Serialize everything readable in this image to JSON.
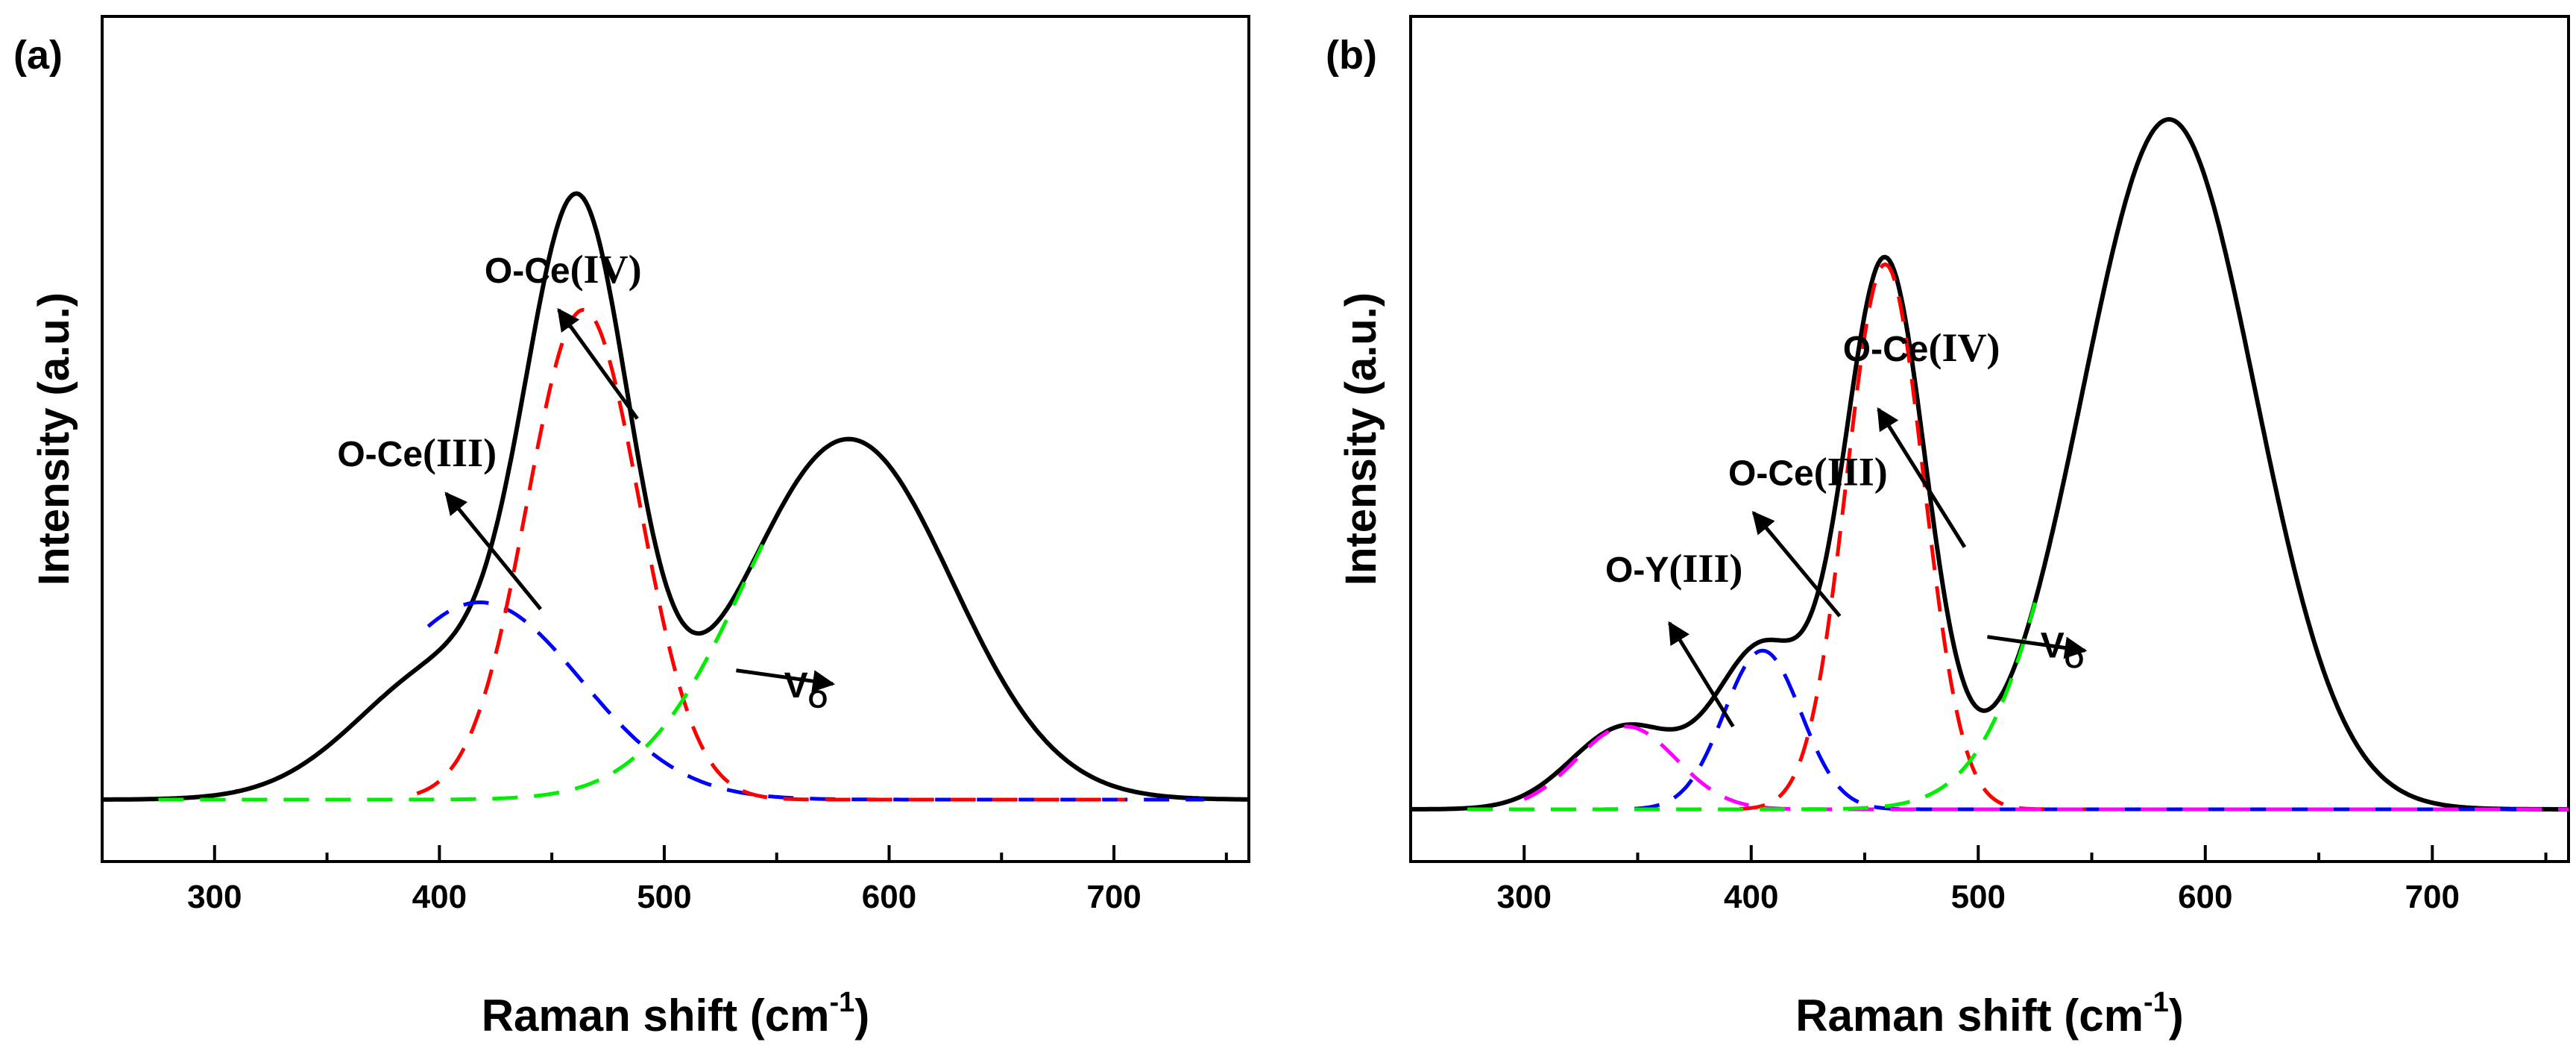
{
  "chart_data": [
    {
      "type": "line",
      "panel_label": "(a)",
      "xlabel": "Raman shift",
      "xlabel_unit_base": "cm",
      "xlabel_unit_exp": "-1",
      "ylabel": "Intensity (a.u.)",
      "xlim": [
        250,
        760
      ],
      "ylim": [
        0,
        1.12
      ],
      "x_ticks": [
        300,
        400,
        500,
        600,
        700
      ],
      "x_tick_labels": [
        "300",
        "400",
        "500",
        "600",
        "700"
      ],
      "y_tick_labels": [],
      "series": [
        {
          "style": "solid",
          "color": "#000000",
          "peaks": [
            [
              405,
              0.2,
              40
            ],
            [
              462,
              0.8,
              23
            ],
            [
              582,
              0.53,
              46
            ]
          ]
        },
        {
          "style": "dashed",
          "color": "#0000ff",
          "range": [
            395,
            740
          ],
          "peaks": [
            [
              418,
              0.29,
              45
            ]
          ]
        },
        {
          "style": "dashed",
          "color": "#ff0000",
          "range": [
            390,
            705
          ],
          "peaks": [
            [
              464,
              0.72,
              25
            ]
          ]
        },
        {
          "style": "dashed",
          "color": "#00ee00",
          "range": [
            275,
            545
          ],
          "peaks": [
            [
              582,
              0.53,
              46
            ]
          ]
        }
      ],
      "annotations": [
        {
          "base": "O-Ce",
          "roman": "III",
          "text_at": [
            390,
            0.49
          ],
          "arrow_tail": [
            445,
            0.28
          ],
          "arrow_head": [
            403,
            0.45
          ]
        },
        {
          "base": "O-Ce",
          "roman": "IV",
          "text_at": [
            455,
            0.76
          ],
          "arrow_tail": [
            488,
            0.56
          ],
          "arrow_head": [
            453,
            0.72
          ]
        },
        {
          "base": "V",
          "sub": "O",
          "text_at": [
            563,
            0.15
          ],
          "arrow_tail": [
            532,
            0.19
          ],
          "arrow_head": [
            575,
            0.17
          ]
        }
      ]
    },
    {
      "type": "line",
      "panel_label": "(b)",
      "xlabel": "Raman shift",
      "xlabel_unit_base": "cm",
      "xlabel_unit_exp": "-1",
      "ylabel": "Intensity (a.u.)",
      "xlim": [
        250,
        760
      ],
      "ylim": [
        0,
        1.12
      ],
      "x_ticks": [
        300,
        400,
        500,
        600,
        700
      ],
      "x_tick_labels": [
        "300",
        "400",
        "500",
        "600",
        "700"
      ],
      "y_tick_labels": [],
      "series": [
        {
          "style": "solid",
          "color": "#000000",
          "peaks": [
            [
              345,
              0.12,
              24
            ],
            [
              405,
              0.23,
              20
            ],
            [
              459,
              0.79,
              18
            ],
            [
              584,
              1.0,
              38
            ]
          ]
        },
        {
          "style": "dashed",
          "color": "#0000ff",
          "range": [
            275,
            740
          ],
          "peaks": [
            [
              405,
              0.23,
              17
            ]
          ]
        },
        {
          "style": "dashed",
          "color": "#ff0000",
          "range": [
            395,
            560
          ],
          "peaks": [
            [
              459,
              0.79,
              17
            ]
          ]
        },
        {
          "style": "dashed",
          "color": "#ff00ff",
          "range": [
            300,
            760
          ],
          "peaks": [
            [
              345,
              0.12,
              22
            ]
          ]
        },
        {
          "style": "dashed",
          "color": "#00ee00",
          "range": [
            275,
            525
          ],
          "peaks": [
            [
              584,
              1.0,
              38
            ]
          ]
        }
      ],
      "annotations": [
        {
          "base": "O-Y",
          "roman": "III",
          "text_at": [
            366,
            0.33
          ],
          "arrow_tail": [
            392,
            0.12
          ],
          "arrow_head": [
            364,
            0.27
          ]
        },
        {
          "base": "O-Ce",
          "roman": "III",
          "text_at": [
            425,
            0.47
          ],
          "arrow_tail": [
            439,
            0.28
          ],
          "arrow_head": [
            401,
            0.43
          ]
        },
        {
          "base": "O-Ce",
          "roman": "IV",
          "text_at": [
            475,
            0.65
          ],
          "arrow_tail": [
            494,
            0.38
          ],
          "arrow_head": [
            456,
            0.58
          ]
        },
        {
          "base": "V",
          "sub": "O",
          "text_at": [
            537,
            0.22
          ],
          "arrow_tail": [
            504,
            0.25
          ],
          "arrow_head": [
            547,
            0.23
          ]
        }
      ]
    }
  ]
}
